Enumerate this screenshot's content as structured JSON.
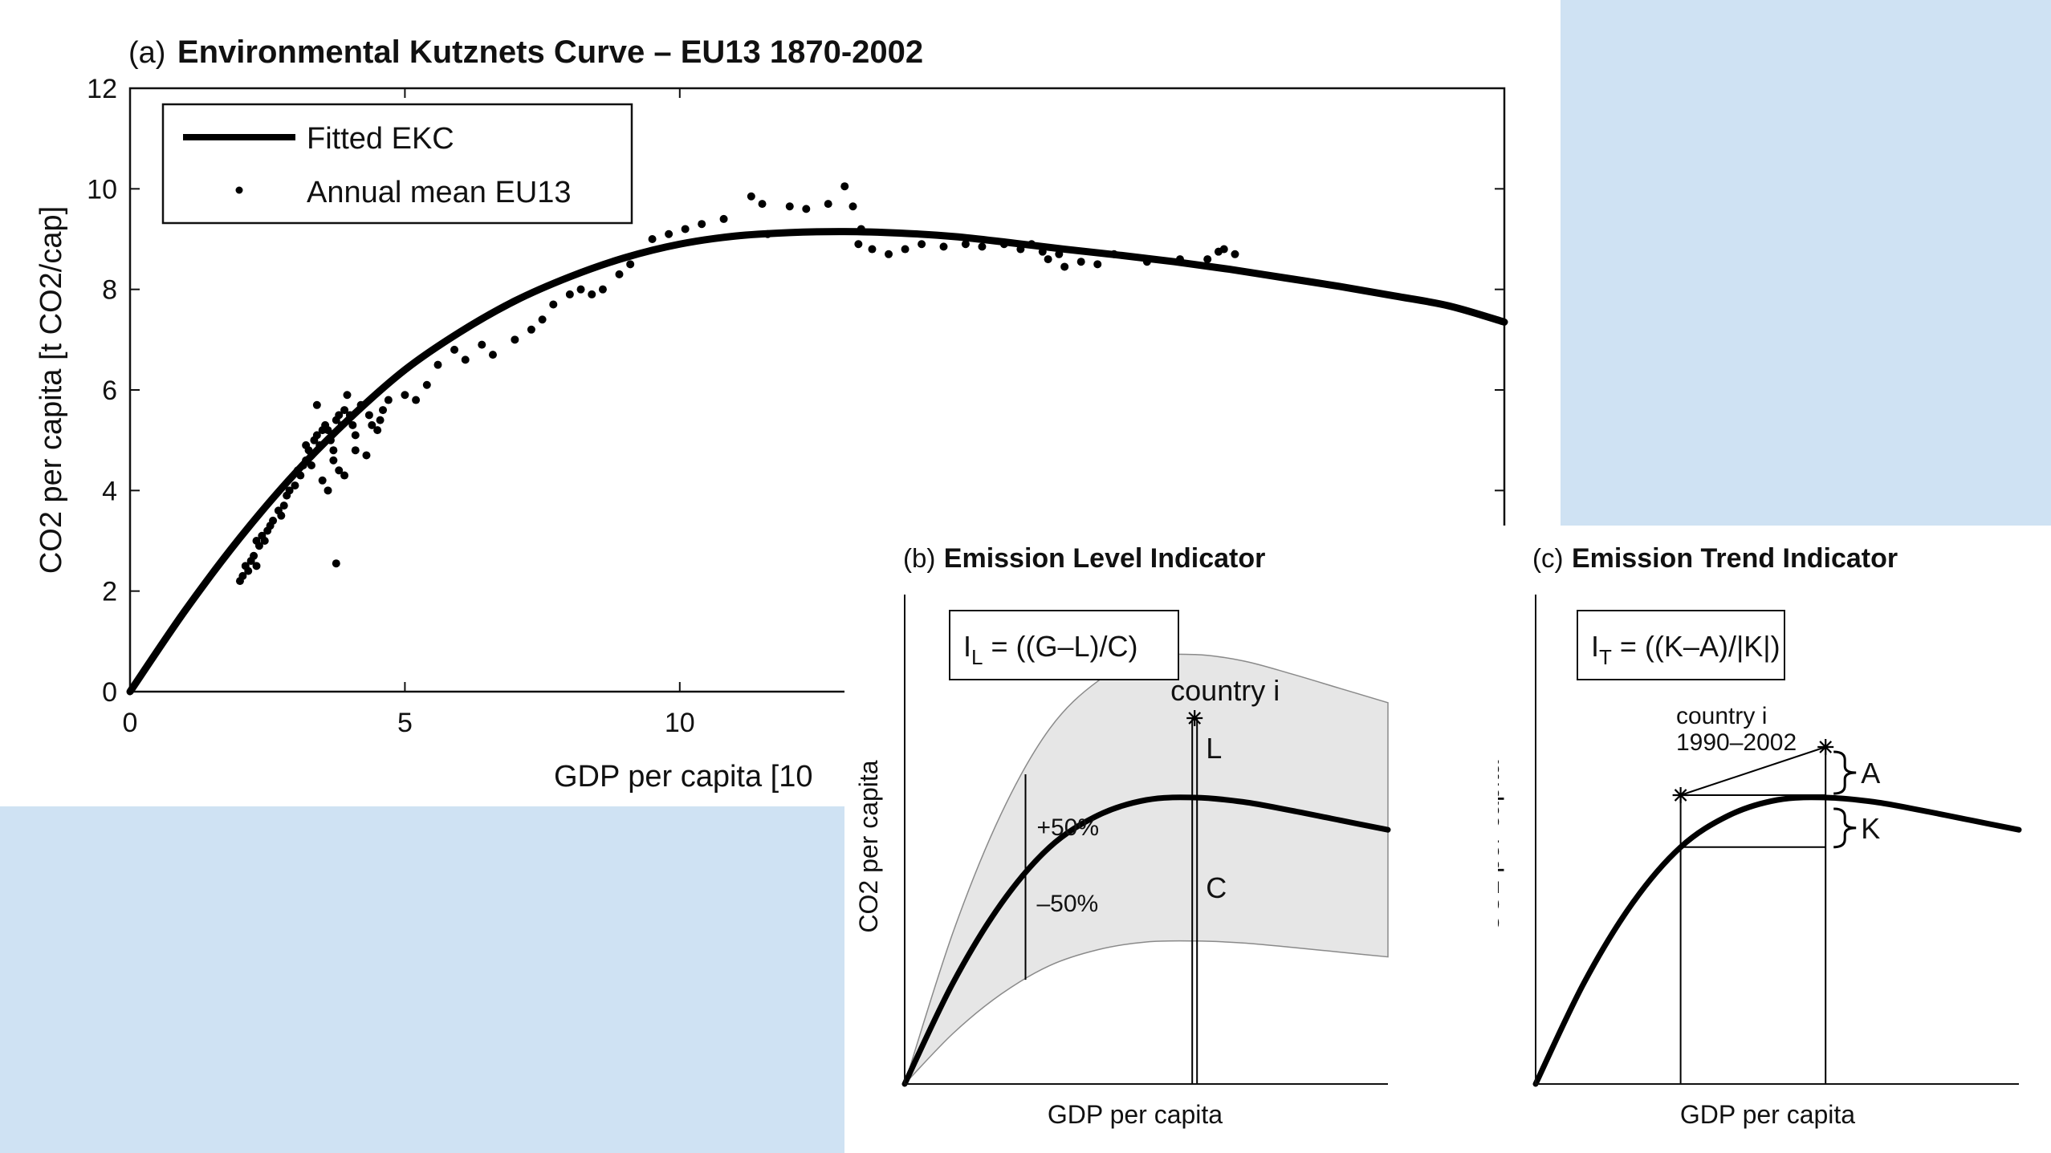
{
  "chart_data": [
    {
      "type": "scatter",
      "panel_label": "(a)",
      "title": "Environmental Kutznets Curve – EU13 1870-2002",
      "xlabel": "GDP per capita [10",
      "ylabel": "CO2 per capita [t CO2/cap]",
      "xlim": [
        0,
        25
      ],
      "ylim": [
        0,
        12
      ],
      "xticks": [
        0,
        5,
        10
      ],
      "yticks": [
        0,
        2,
        4,
        6,
        8,
        10,
        12
      ],
      "grid": false,
      "legend_position": "top-left",
      "legend": [
        "Fitted EKC",
        "Annual mean EU13"
      ],
      "series": [
        {
          "name": "Fitted EKC",
          "kind": "line",
          "x": [
            0,
            1,
            2,
            3,
            4,
            5,
            6,
            7,
            8,
            9,
            10,
            11,
            12,
            13,
            14,
            15,
            16,
            17,
            18,
            19,
            20,
            21,
            22,
            23,
            24,
            25
          ],
          "y": [
            0,
            1.61,
            3.06,
            4.34,
            5.44,
            6.4,
            7.15,
            7.77,
            8.25,
            8.63,
            8.9,
            9.06,
            9.13,
            9.15,
            9.12,
            9.05,
            8.93,
            8.8,
            8.68,
            8.55,
            8.4,
            8.23,
            8.06,
            7.87,
            7.67,
            7.35
          ]
        },
        {
          "name": "Annual mean EU13",
          "kind": "scatter",
          "x": [
            2.0,
            2.05,
            2.1,
            2.15,
            2.2,
            2.25,
            2.3,
            2.3,
            2.35,
            2.4,
            2.45,
            2.5,
            2.55,
            2.6,
            2.7,
            2.75,
            2.8,
            2.85,
            2.9,
            3.0,
            3.05,
            3.1,
            3.15,
            3.2,
            3.25,
            3.3,
            3.35,
            3.4,
            3.45,
            3.5,
            3.55,
            3.6,
            3.65,
            3.7,
            3.75,
            3.8,
            3.85,
            3.9,
            3.95,
            4.0,
            4.05,
            4.1,
            4.2,
            4.3,
            4.35,
            4.4,
            4.5,
            4.55,
            4.6,
            3.4,
            3.5,
            3.6,
            3.3,
            3.2,
            3.7,
            3.8,
            3.75,
            4.1,
            3.9,
            4.7,
            5.0,
            5.2,
            5.4,
            5.6,
            5.9,
            6.1,
            6.4,
            6.6,
            7.0,
            7.3,
            7.5,
            7.7,
            8.0,
            8.2,
            8.4,
            8.6,
            8.9,
            9.1,
            9.5,
            9.8,
            10.1,
            10.4,
            10.8,
            11.3,
            11.5,
            11.6,
            12.0,
            12.3,
            12.7,
            13.0,
            13.15,
            13.3,
            13.25,
            13.5,
            13.8,
            14.1,
            14.4,
            14.8,
            15.2,
            15.5,
            15.9,
            16.2,
            16.4,
            16.6,
            16.7,
            16.9,
            17.0,
            17.3,
            17.6,
            17.9,
            18.5,
            19.1,
            19.6,
            19.8,
            19.9,
            20.1
          ],
          "y": [
            2.2,
            2.3,
            2.5,
            2.4,
            2.6,
            2.7,
            2.5,
            3.0,
            2.9,
            3.1,
            3.0,
            3.2,
            3.3,
            3.4,
            3.6,
            3.5,
            3.7,
            3.9,
            4.0,
            4.1,
            4.4,
            4.3,
            4.5,
            4.6,
            4.8,
            4.7,
            5.0,
            5.1,
            4.9,
            5.2,
            5.3,
            5.2,
            5.0,
            4.8,
            5.4,
            5.5,
            5.3,
            5.6,
            5.9,
            5.5,
            5.3,
            5.1,
            5.7,
            4.7,
            5.5,
            5.3,
            5.2,
            5.4,
            5.6,
            5.7,
            4.2,
            4.0,
            4.5,
            4.9,
            4.6,
            4.4,
            2.55,
            4.8,
            4.3,
            5.8,
            5.9,
            5.8,
            6.1,
            6.5,
            6.8,
            6.6,
            6.9,
            6.7,
            7.0,
            7.2,
            7.4,
            7.7,
            7.9,
            8.0,
            7.9,
            8.0,
            8.3,
            8.5,
            9.0,
            9.1,
            9.2,
            9.3,
            9.4,
            9.85,
            9.7,
            9.1,
            9.65,
            9.6,
            9.7,
            10.05,
            9.65,
            9.2,
            8.9,
            8.8,
            8.7,
            8.8,
            8.9,
            8.85,
            8.9,
            8.85,
            8.9,
            8.8,
            8.9,
            8.75,
            8.6,
            8.7,
            8.45,
            8.55,
            8.5,
            8.7,
            8.55,
            8.6,
            8.6,
            8.75,
            8.8,
            8.7
          ]
        }
      ]
    },
    {
      "type": "line",
      "panel_label": "(b)",
      "title": "Emission Level Indicator",
      "xlabel": "GDP per capita",
      "ylabel": "CO2 per capita",
      "formula": {
        "main": "I",
        "sub": "L",
        "rest": " = ((G–L)/C)"
      },
      "annotations": {
        "country": "country i",
        "upper_band": "+50%",
        "lower_band": "–50%",
        "L": "L",
        "C": "C"
      },
      "series": [
        {
          "kind": "curve",
          "x": [
            0,
            1,
            2,
            3,
            4,
            5,
            6,
            7,
            8,
            9,
            10
          ],
          "y": [
            0,
            2.1,
            3.75,
            4.92,
            5.58,
            5.9,
            5.95,
            5.86,
            5.68,
            5.48,
            5.28
          ]
        },
        {
          "kind": "band-upper",
          "x": [
            0,
            1,
            2,
            3,
            4,
            5,
            6,
            7,
            8,
            9,
            10
          ],
          "y": [
            0,
            3.15,
            5.62,
            7.38,
            8.37,
            8.85,
            8.92,
            8.79,
            8.52,
            8.22,
            7.92
          ]
        },
        {
          "kind": "band-lower",
          "x": [
            0,
            1,
            2,
            3,
            4,
            5,
            6,
            7,
            8,
            9,
            10
          ],
          "y": [
            0,
            1.05,
            1.87,
            2.46,
            2.79,
            2.95,
            2.97,
            2.93,
            2.84,
            2.74,
            2.64
          ]
        }
      ],
      "point": {
        "x": 6.0,
        "y": 7.6
      },
      "band_line_x": 2.5
    },
    {
      "type": "line",
      "panel_label": "(c)",
      "title": "Emission Trend Indicator",
      "xlabel": "GDP per capita",
      "ylabel": "CO2 per capita",
      "formula": {
        "main": "I",
        "sub": "T",
        "rest": " = ((K–A)/|K|)"
      },
      "annotations": {
        "country_line1": "country i",
        "country_line2": "1990–2002",
        "A": "A",
        "K": "K"
      },
      "series": [
        {
          "kind": "curve",
          "x": [
            0,
            1,
            2,
            3,
            4,
            5,
            6,
            7,
            8,
            9,
            10
          ],
          "y": [
            0,
            2.1,
            3.75,
            4.92,
            5.58,
            5.9,
            5.95,
            5.86,
            5.68,
            5.48,
            5.28
          ]
        }
      ],
      "points": [
        {
          "x": 3.0,
          "y": 6.0
        },
        {
          "x": 6.0,
          "y": 7.0
        }
      ]
    }
  ]
}
